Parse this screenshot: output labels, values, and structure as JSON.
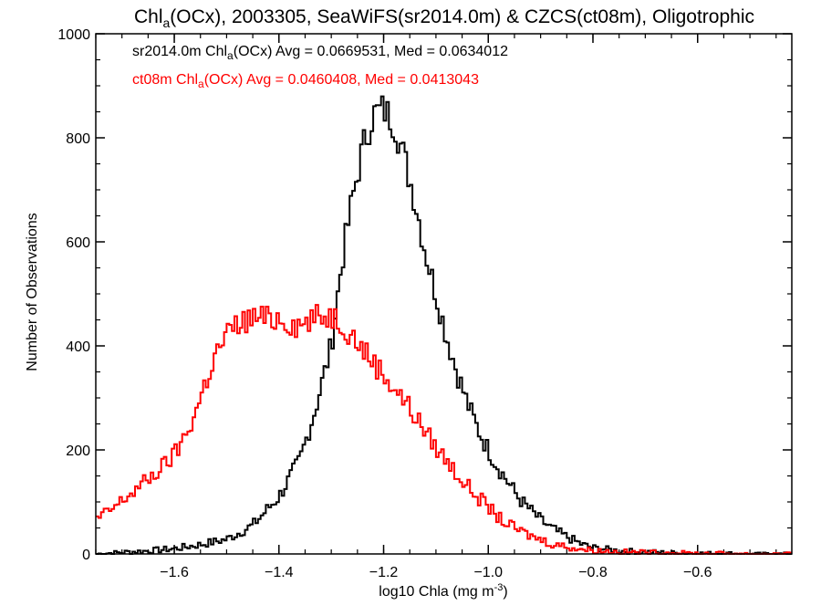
{
  "chart_data": {
    "type": "line",
    "title": {
      "pre": "Chl",
      "sub": "a",
      "post": "(OCx), 2003305, SeaWiFS(sr2014.0m) & CZCS(ct08m), Oligotrophic"
    },
    "xlabel": {
      "pre": "log10 Chla (mg m",
      "sup": "-3",
      "post": ")"
    },
    "ylabel": "Number of Observations",
    "xlim": [
      -1.75,
      -0.42
    ],
    "ylim": [
      0,
      1000
    ],
    "xticks": [
      -1.6,
      -1.4,
      -1.2,
      -1.0,
      -0.8,
      -0.6
    ],
    "xtick_labels": [
      "−1.6",
      "−1.4",
      "−1.2",
      "−1.0",
      "−0.8",
      "−0.6"
    ],
    "yticks": [
      0,
      200,
      400,
      600,
      800,
      1000
    ],
    "ytick_labels": [
      "0",
      "200",
      "400",
      "600",
      "800",
      "1000"
    ],
    "grid": false,
    "annotations": [
      {
        "pre": "sr2014.0m Chl",
        "sub": "a",
        "post": "(OCx) Avg = 0.0669531, Med = 0.0634012",
        "color": "#000000"
      },
      {
        "pre": "ct08m Chl",
        "sub": "a",
        "post": "(OCx) Avg = 0.0460408, Med = 0.0413043",
        "color": "#ff0000"
      }
    ],
    "series": [
      {
        "color": "#000000",
        "x": [
          -1.75,
          -1.7,
          -1.65,
          -1.6,
          -1.55,
          -1.5,
          -1.45,
          -1.4,
          -1.36,
          -1.33,
          -1.3,
          -1.28,
          -1.26,
          -1.24,
          -1.22,
          -1.2,
          -1.18,
          -1.16,
          -1.14,
          -1.12,
          -1.1,
          -1.08,
          -1.06,
          -1.04,
          -1.02,
          -1.0,
          -0.98,
          -0.96,
          -0.94,
          -0.92,
          -0.9,
          -0.88,
          -0.86,
          -0.84,
          -0.82,
          -0.8,
          -0.75,
          -0.7,
          -0.65,
          -0.6,
          -0.55,
          -0.5,
          -0.45,
          -0.42
        ],
        "y": [
          0,
          3,
          6,
          10,
          18,
          28,
          55,
          110,
          180,
          280,
          400,
          560,
          680,
          780,
          845,
          855,
          830,
          760,
          680,
          580,
          500,
          420,
          350,
          290,
          240,
          200,
          165,
          135,
          105,
          85,
          65,
          50,
          38,
          28,
          18,
          12,
          6,
          4,
          2,
          1,
          1,
          0,
          0,
          0
        ]
      },
      {
        "color": "#ff0000",
        "x": [
          -1.75,
          -1.72,
          -1.69,
          -1.66,
          -1.63,
          -1.6,
          -1.58,
          -1.56,
          -1.54,
          -1.52,
          -1.5,
          -1.48,
          -1.46,
          -1.44,
          -1.42,
          -1.4,
          -1.38,
          -1.36,
          -1.34,
          -1.32,
          -1.3,
          -1.28,
          -1.26,
          -1.24,
          -1.22,
          -1.2,
          -1.18,
          -1.16,
          -1.14,
          -1.12,
          -1.1,
          -1.08,
          -1.06,
          -1.04,
          -1.02,
          -1.0,
          -0.98,
          -0.96,
          -0.94,
          -0.92,
          -0.9,
          -0.88,
          -0.86,
          -0.84,
          -0.82,
          -0.8,
          -0.75,
          -0.7,
          -0.65,
          -0.6,
          -0.55,
          -0.5,
          -0.45,
          -0.42
        ],
        "y": [
          65,
          85,
          110,
          135,
          160,
          190,
          225,
          270,
          330,
          385,
          420,
          440,
          450,
          455,
          450,
          455,
          445,
          440,
          450,
          455,
          460,
          445,
          420,
          395,
          370,
          345,
          320,
          295,
          265,
          235,
          205,
          180,
          155,
          130,
          110,
          90,
          70,
          55,
          45,
          35,
          28,
          20,
          16,
          12,
          9,
          7,
          4,
          3,
          2,
          1,
          1,
          0,
          0,
          0
        ]
      }
    ]
  }
}
